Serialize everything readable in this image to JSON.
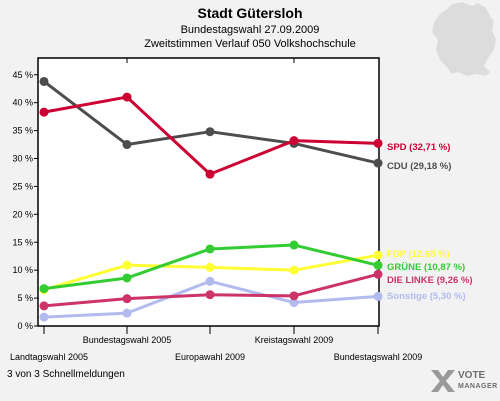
{
  "header": {
    "title": "Stadt Gütersloh",
    "subtitle1": "Bundestagswahl 27.09.2009",
    "subtitle2": "Zweitstimmen Verlauf 050 Volkshochschule"
  },
  "footer": {
    "text": "3 von 3 Schnellmeldungen"
  },
  "brand": {
    "name": "VOTE",
    "tagline": "MANAGER",
    "icon": "vote-x-logo-icon"
  },
  "map": {
    "icon": "germany-map-icon",
    "color": "#dcdcdc"
  },
  "chart_data": {
    "type": "line",
    "categories": [
      "Landtagswahl 2005",
      "Bundestagswahl 2005",
      "Europawahl 2009",
      "Kreistagswahl 2009",
      "Bundestagswahl 2009"
    ],
    "ylim": [
      0,
      48
    ],
    "yticks": [
      0,
      5,
      10,
      15,
      20,
      25,
      30,
      35,
      40,
      45
    ],
    "ytick_labels": [
      "0 %",
      "5 %",
      "10 %",
      "15 %",
      "20 %",
      "25 %",
      "30 %",
      "35 %",
      "40 %",
      "45 %"
    ],
    "grid": false,
    "series": [
      {
        "name": "SPD",
        "label": "SPD (32,71 %)",
        "color": "#cc0033",
        "values": [
          38.3,
          41.0,
          27.2,
          33.2,
          32.71
        ]
      },
      {
        "name": "CDU",
        "label": "CDU (29,18 %)",
        "color": "#4d4d4d",
        "values": [
          43.8,
          32.5,
          34.8,
          32.7,
          29.18
        ]
      },
      {
        "name": "FDP",
        "label": "FDP (12,68 %)",
        "color": "#ffff33",
        "values": [
          6.5,
          10.9,
          10.5,
          10.0,
          12.68
        ]
      },
      {
        "name": "GRÜNE",
        "label": "GRÜNE (10,87 %)",
        "color": "#33cc33",
        "values": [
          6.7,
          8.6,
          13.8,
          14.5,
          10.87
        ]
      },
      {
        "name": "DIE LINKE",
        "label": "DIE LINKE (9,26 %)",
        "color": "#cc3366",
        "values": [
          3.6,
          4.9,
          5.6,
          5.4,
          9.26
        ]
      },
      {
        "name": "Sonstige",
        "label": "Sonstige (5,30 %)",
        "color": "#b3bbee",
        "values": [
          1.6,
          2.3,
          8.0,
          4.2,
          5.3
        ]
      }
    ]
  }
}
